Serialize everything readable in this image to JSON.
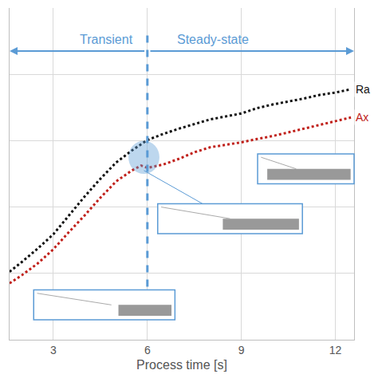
{
  "chart_data": {
    "type": "line",
    "x_label": "Process time [s]",
    "x": [
      1.6,
      2.0,
      2.5,
      3.0,
      3.5,
      4.0,
      4.5,
      5.0,
      5.5,
      5.8,
      6.0,
      6.5,
      7.0,
      7.5,
      8.0,
      8.5,
      9.0,
      9.5,
      10.0,
      10.5,
      11.0,
      11.5,
      12.0,
      12.5
    ],
    "series": [
      {
        "name": "Ra",
        "color": "#111111",
        "line_style": "dot",
        "values": [
          20.5,
          23.5,
          27.5,
          31.8,
          37.5,
          43.2,
          48.5,
          53.4,
          57.0,
          58.8,
          60.2,
          62.0,
          63.6,
          65.0,
          66.4,
          67.3,
          68.2,
          69.8,
          70.9,
          71.8,
          72.7,
          73.8,
          74.5,
          75.5
        ]
      },
      {
        "name": "Ax",
        "color": "#c0201a",
        "line_style": "dot",
        "values": [
          17.0,
          19.5,
          23.0,
          27.3,
          32.5,
          37.5,
          42.8,
          47.7,
          51.0,
          52.5,
          51.8,
          52.8,
          54.5,
          56.5,
          58.0,
          58.8,
          59.5,
          60.5,
          61.4,
          62.5,
          63.6,
          64.8,
          65.9,
          67.0
        ]
      }
    ],
    "xlim": [
      1.6,
      12.6
    ],
    "xticks": [
      3,
      6,
      9,
      12
    ],
    "ylim": [
      0,
      100
    ],
    "yticks": [
      0,
      20,
      40,
      60,
      80,
      100
    ],
    "grid": true,
    "tick_labels": "x",
    "boundary_x": 6,
    "annotations": [
      {
        "text": "Transient"
      },
      {
        "text": "Steady-state"
      }
    ]
  }
}
